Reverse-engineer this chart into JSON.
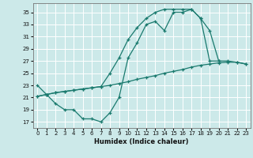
{
  "xlabel": "Humidex (Indice chaleur)",
  "bg_color": "#cce9e9",
  "line_color": "#1a7a6e",
  "grid_color": "#ffffff",
  "xlim": [
    -0.5,
    23.5
  ],
  "ylim": [
    16.0,
    36.5
  ],
  "yticks": [
    17,
    19,
    21,
    23,
    25,
    27,
    29,
    31,
    33,
    35
  ],
  "xticks": [
    0,
    1,
    2,
    3,
    4,
    5,
    6,
    7,
    8,
    9,
    10,
    11,
    12,
    13,
    14,
    15,
    16,
    17,
    18,
    19,
    20,
    21,
    22,
    23
  ],
  "line1_x": [
    0,
    1,
    2,
    3,
    4,
    5,
    6,
    7,
    8,
    9,
    10,
    11,
    12,
    13,
    14,
    15,
    16,
    17,
    18,
    19,
    20
  ],
  "line1_y": [
    23.0,
    21.5,
    20.0,
    19.0,
    19.0,
    17.5,
    17.5,
    17.0,
    18.5,
    21.0,
    27.5,
    30.0,
    33.0,
    33.5,
    32.0,
    35.0,
    35.0,
    35.5,
    34.0,
    27.0,
    27.0
  ],
  "line2_x": [
    0,
    1,
    2,
    3,
    4,
    5,
    6,
    7,
    8,
    9,
    10,
    11,
    12,
    13,
    14,
    15,
    16,
    17,
    18,
    19,
    20,
    21,
    22,
    23
  ],
  "line2_y": [
    21.2,
    21.5,
    21.8,
    22.0,
    22.2,
    22.4,
    22.6,
    22.8,
    23.0,
    23.3,
    23.6,
    24.0,
    24.3,
    24.6,
    25.0,
    25.3,
    25.6,
    26.0,
    26.3,
    26.5,
    26.7,
    26.8,
    26.8,
    26.5
  ],
  "line3_x": [
    0,
    1,
    2,
    3,
    4,
    5,
    6,
    7,
    8,
    9,
    10,
    11,
    12,
    13,
    14,
    15,
    16,
    17,
    18,
    19,
    20,
    21,
    22,
    23
  ],
  "line3_y": [
    21.2,
    21.5,
    21.8,
    22.0,
    22.2,
    22.4,
    22.6,
    22.8,
    25.0,
    27.5,
    30.5,
    32.5,
    34.0,
    35.0,
    35.5,
    35.5,
    35.5,
    35.5,
    34.0,
    32.0,
    27.0,
    27.0,
    26.8,
    26.5
  ]
}
